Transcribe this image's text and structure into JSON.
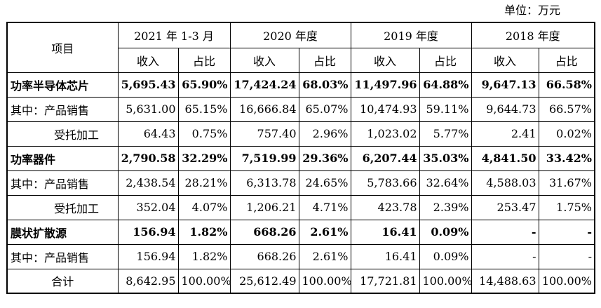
{
  "unit_label": "单位：万元",
  "header": {
    "item": "项目",
    "periods": [
      "2021 年 1-3 月",
      "2020 年度",
      "2019 年度",
      "2018 年度"
    ],
    "revenue": "收入",
    "ratio": "占比"
  },
  "rows": [
    {
      "label": "功率半导体芯片",
      "bold": true,
      "indent": false,
      "cells": [
        "5,695.43",
        "65.90%",
        "17,424.24",
        "68.03%",
        "11,497.96",
        "64.88%",
        "9,647.13",
        "66.58%"
      ]
    },
    {
      "label": "其中：产品销售",
      "bold": false,
      "indent": false,
      "cells": [
        "5,631.00",
        "65.15%",
        "16,666.84",
        "65.07%",
        "10,474.93",
        "59.11%",
        "9,644.73",
        "66.57%"
      ]
    },
    {
      "label": "受托加工",
      "bold": false,
      "indent": true,
      "cells": [
        "64.43",
        "0.75%",
        "757.40",
        "2.96%",
        "1,023.02",
        "5.77%",
        "2.41",
        "0.02%"
      ]
    },
    {
      "label": "功率器件",
      "bold": true,
      "indent": false,
      "cells": [
        "2,790.58",
        "32.29%",
        "7,519.99",
        "29.36%",
        "6,207.44",
        "35.03%",
        "4,841.50",
        "33.42%"
      ]
    },
    {
      "label": "其中：产品销售",
      "bold": false,
      "indent": false,
      "cells": [
        "2,438.54",
        "28.21%",
        "6,313.78",
        "24.65%",
        "5,783.66",
        "32.64%",
        "4,588.03",
        "31.67%"
      ]
    },
    {
      "label": "受托加工",
      "bold": false,
      "indent": true,
      "cells": [
        "352.04",
        "4.07%",
        "1,206.21",
        "4.71%",
        "423.78",
        "2.39%",
        "253.47",
        "1.75%"
      ]
    },
    {
      "label": "膜状扩散源",
      "bold": true,
      "indent": false,
      "cells": [
        "156.94",
        "1.82%",
        "668.26",
        "2.61%",
        "16.41",
        "0.09%",
        "-",
        "-"
      ]
    },
    {
      "label": "其中：产品销售",
      "bold": false,
      "indent": false,
      "cells": [
        "156.94",
        "1.82%",
        "668.26",
        "2.61%",
        "16.41",
        "0.09%",
        "-",
        "-"
      ]
    },
    {
      "label": "合计",
      "bold": false,
      "center": true,
      "indent": false,
      "cells": [
        "8,642.95",
        "100.00%",
        "25,612.49",
        "100.00%",
        "17,721.81",
        "100.00%",
        "14,488.63",
        "100.00%"
      ]
    }
  ]
}
